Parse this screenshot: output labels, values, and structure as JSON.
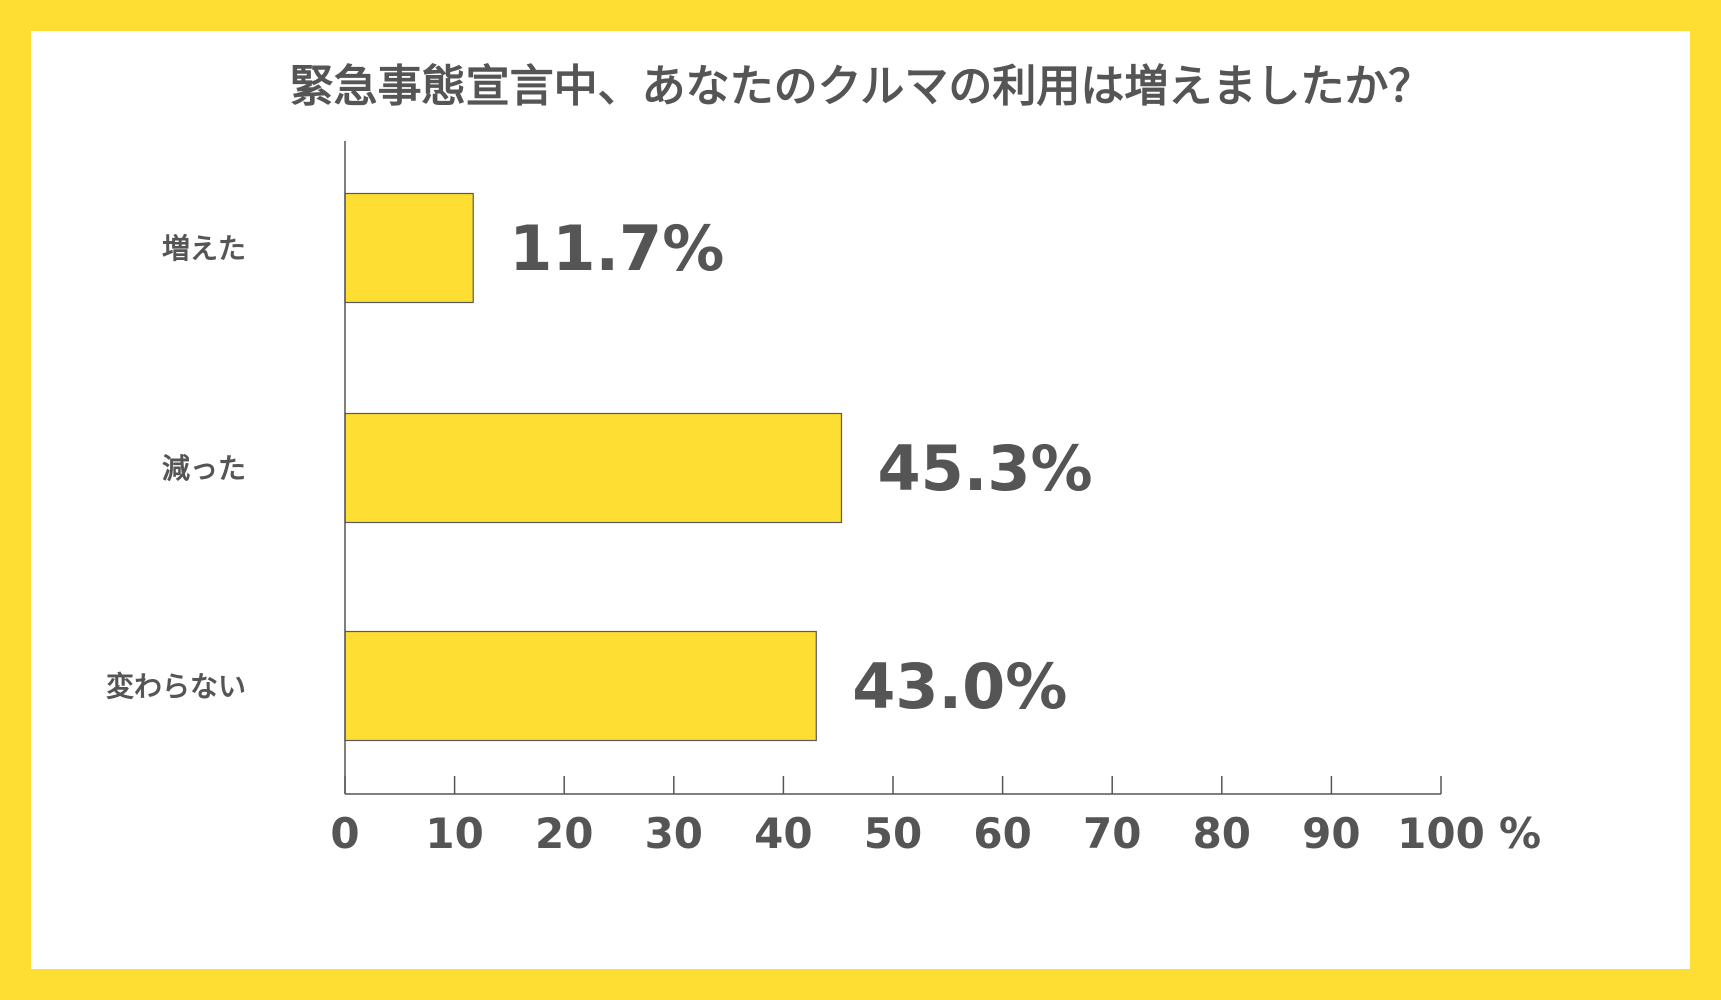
{
  "chart_data": {
    "type": "bar",
    "orientation": "horizontal",
    "title": "緊急事態宣言中、あなたのクルマの利用は増えましたか？",
    "categories": [
      "増えた",
      "減った",
      "変わらない"
    ],
    "values": [
      11.7,
      45.3,
      43.0
    ],
    "value_labels": [
      "11.7%",
      "45.3%",
      "43.0%"
    ],
    "xlim": [
      0,
      100
    ],
    "x_ticks": [
      0,
      10,
      20,
      30,
      40,
      50,
      60,
      70,
      80,
      90,
      100
    ],
    "x_tick_labels": [
      "0",
      "10",
      "20",
      "30",
      "40",
      "50",
      "60",
      "70",
      "80",
      "90",
      "100"
    ],
    "x_unit": "%",
    "grid": false,
    "bar_color": "#FFDE33",
    "text_color": "#555555",
    "border_color": "#FFDE33"
  }
}
